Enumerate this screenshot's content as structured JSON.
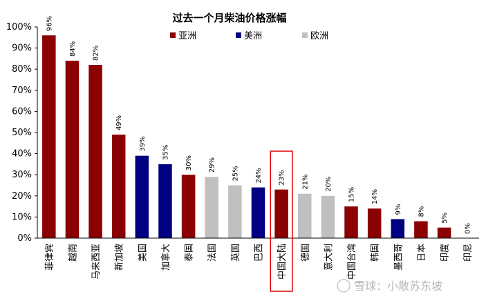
{
  "chart_data": {
    "type": "bar",
    "title": "过去一个月柴油价格涨幅",
    "categories": [
      "菲律宾",
      "越南",
      "马来西亚",
      "新加坡",
      "美国",
      "加拿大",
      "泰国",
      "法国",
      "英国",
      "巴西",
      "中国大陆",
      "德国",
      "意大利",
      "中国台湾",
      "韩国",
      "墨西哥",
      "日本",
      "印度",
      "印尼"
    ],
    "values": [
      96,
      84,
      82,
      49,
      39,
      35,
      30,
      29,
      25,
      24,
      23,
      21,
      20,
      15,
      14,
      9,
      8,
      5,
      0
    ],
    "data_labels": [
      "96%",
      "84%",
      "82%",
      "49%",
      "39%",
      "35%",
      "30%",
      "29%",
      "25%",
      "24%",
      "23%",
      "21%",
      "20%",
      "15%",
      "14%",
      "9%",
      "8%",
      "5%",
      "0%"
    ],
    "groups": [
      "亚洲",
      "亚洲",
      "亚洲",
      "亚洲",
      "美洲",
      "美洲",
      "亚洲",
      "欧洲",
      "欧洲",
      "美洲",
      "亚洲",
      "欧洲",
      "欧洲",
      "亚洲",
      "亚洲",
      "美洲",
      "亚洲",
      "亚洲",
      "亚洲"
    ],
    "legend": [
      {
        "name": "亚洲",
        "color": "#8b0000"
      },
      {
        "name": "美洲",
        "color": "#000080"
      },
      {
        "name": "欧洲",
        "color": "#c0c0c0"
      }
    ],
    "legend_position": "top",
    "ylim": [
      0,
      100
    ],
    "yticks": [
      "0%",
      "10%",
      "20%",
      "30%",
      "40%",
      "50%",
      "60%",
      "70%",
      "80%",
      "90%",
      "100%"
    ],
    "grid": false,
    "highlight_category": "中国大陆",
    "highlight_color": "#e00000"
  },
  "watermark": "雪球：小散苏东坡"
}
